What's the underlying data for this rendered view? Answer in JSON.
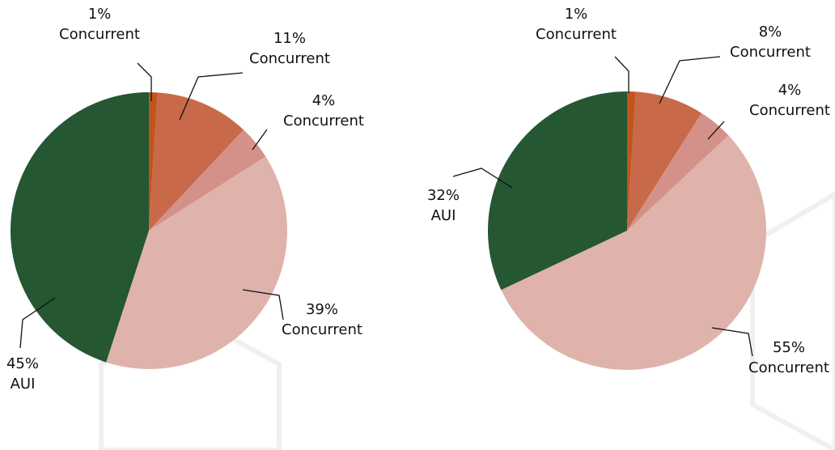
{
  "chart_data": [
    {
      "type": "pie",
      "categories": [
        "Concurrent",
        "Concurrent",
        "Concurrent",
        "Concurrent",
        "AUI"
      ],
      "values": [
        1,
        11,
        4,
        39,
        45
      ],
      "value_labels": [
        "1%",
        "11%",
        "4%",
        "39%",
        "45%"
      ],
      "colors": [
        "#c0561e",
        "#c8694a",
        "#d4918a",
        "#dfb3ab",
        "#245732"
      ]
    },
    {
      "type": "pie",
      "categories": [
        "Concurrent",
        "Concurrent",
        "Concurrent",
        "Concurrent",
        "AUI"
      ],
      "values": [
        1,
        8,
        4,
        55,
        32
      ],
      "value_labels": [
        "1%",
        "8%",
        "4%",
        "55%",
        "32%"
      ],
      "colors": [
        "#c0561e",
        "#c8694a",
        "#d4918a",
        "#dfb3ab",
        "#245732"
      ]
    }
  ]
}
